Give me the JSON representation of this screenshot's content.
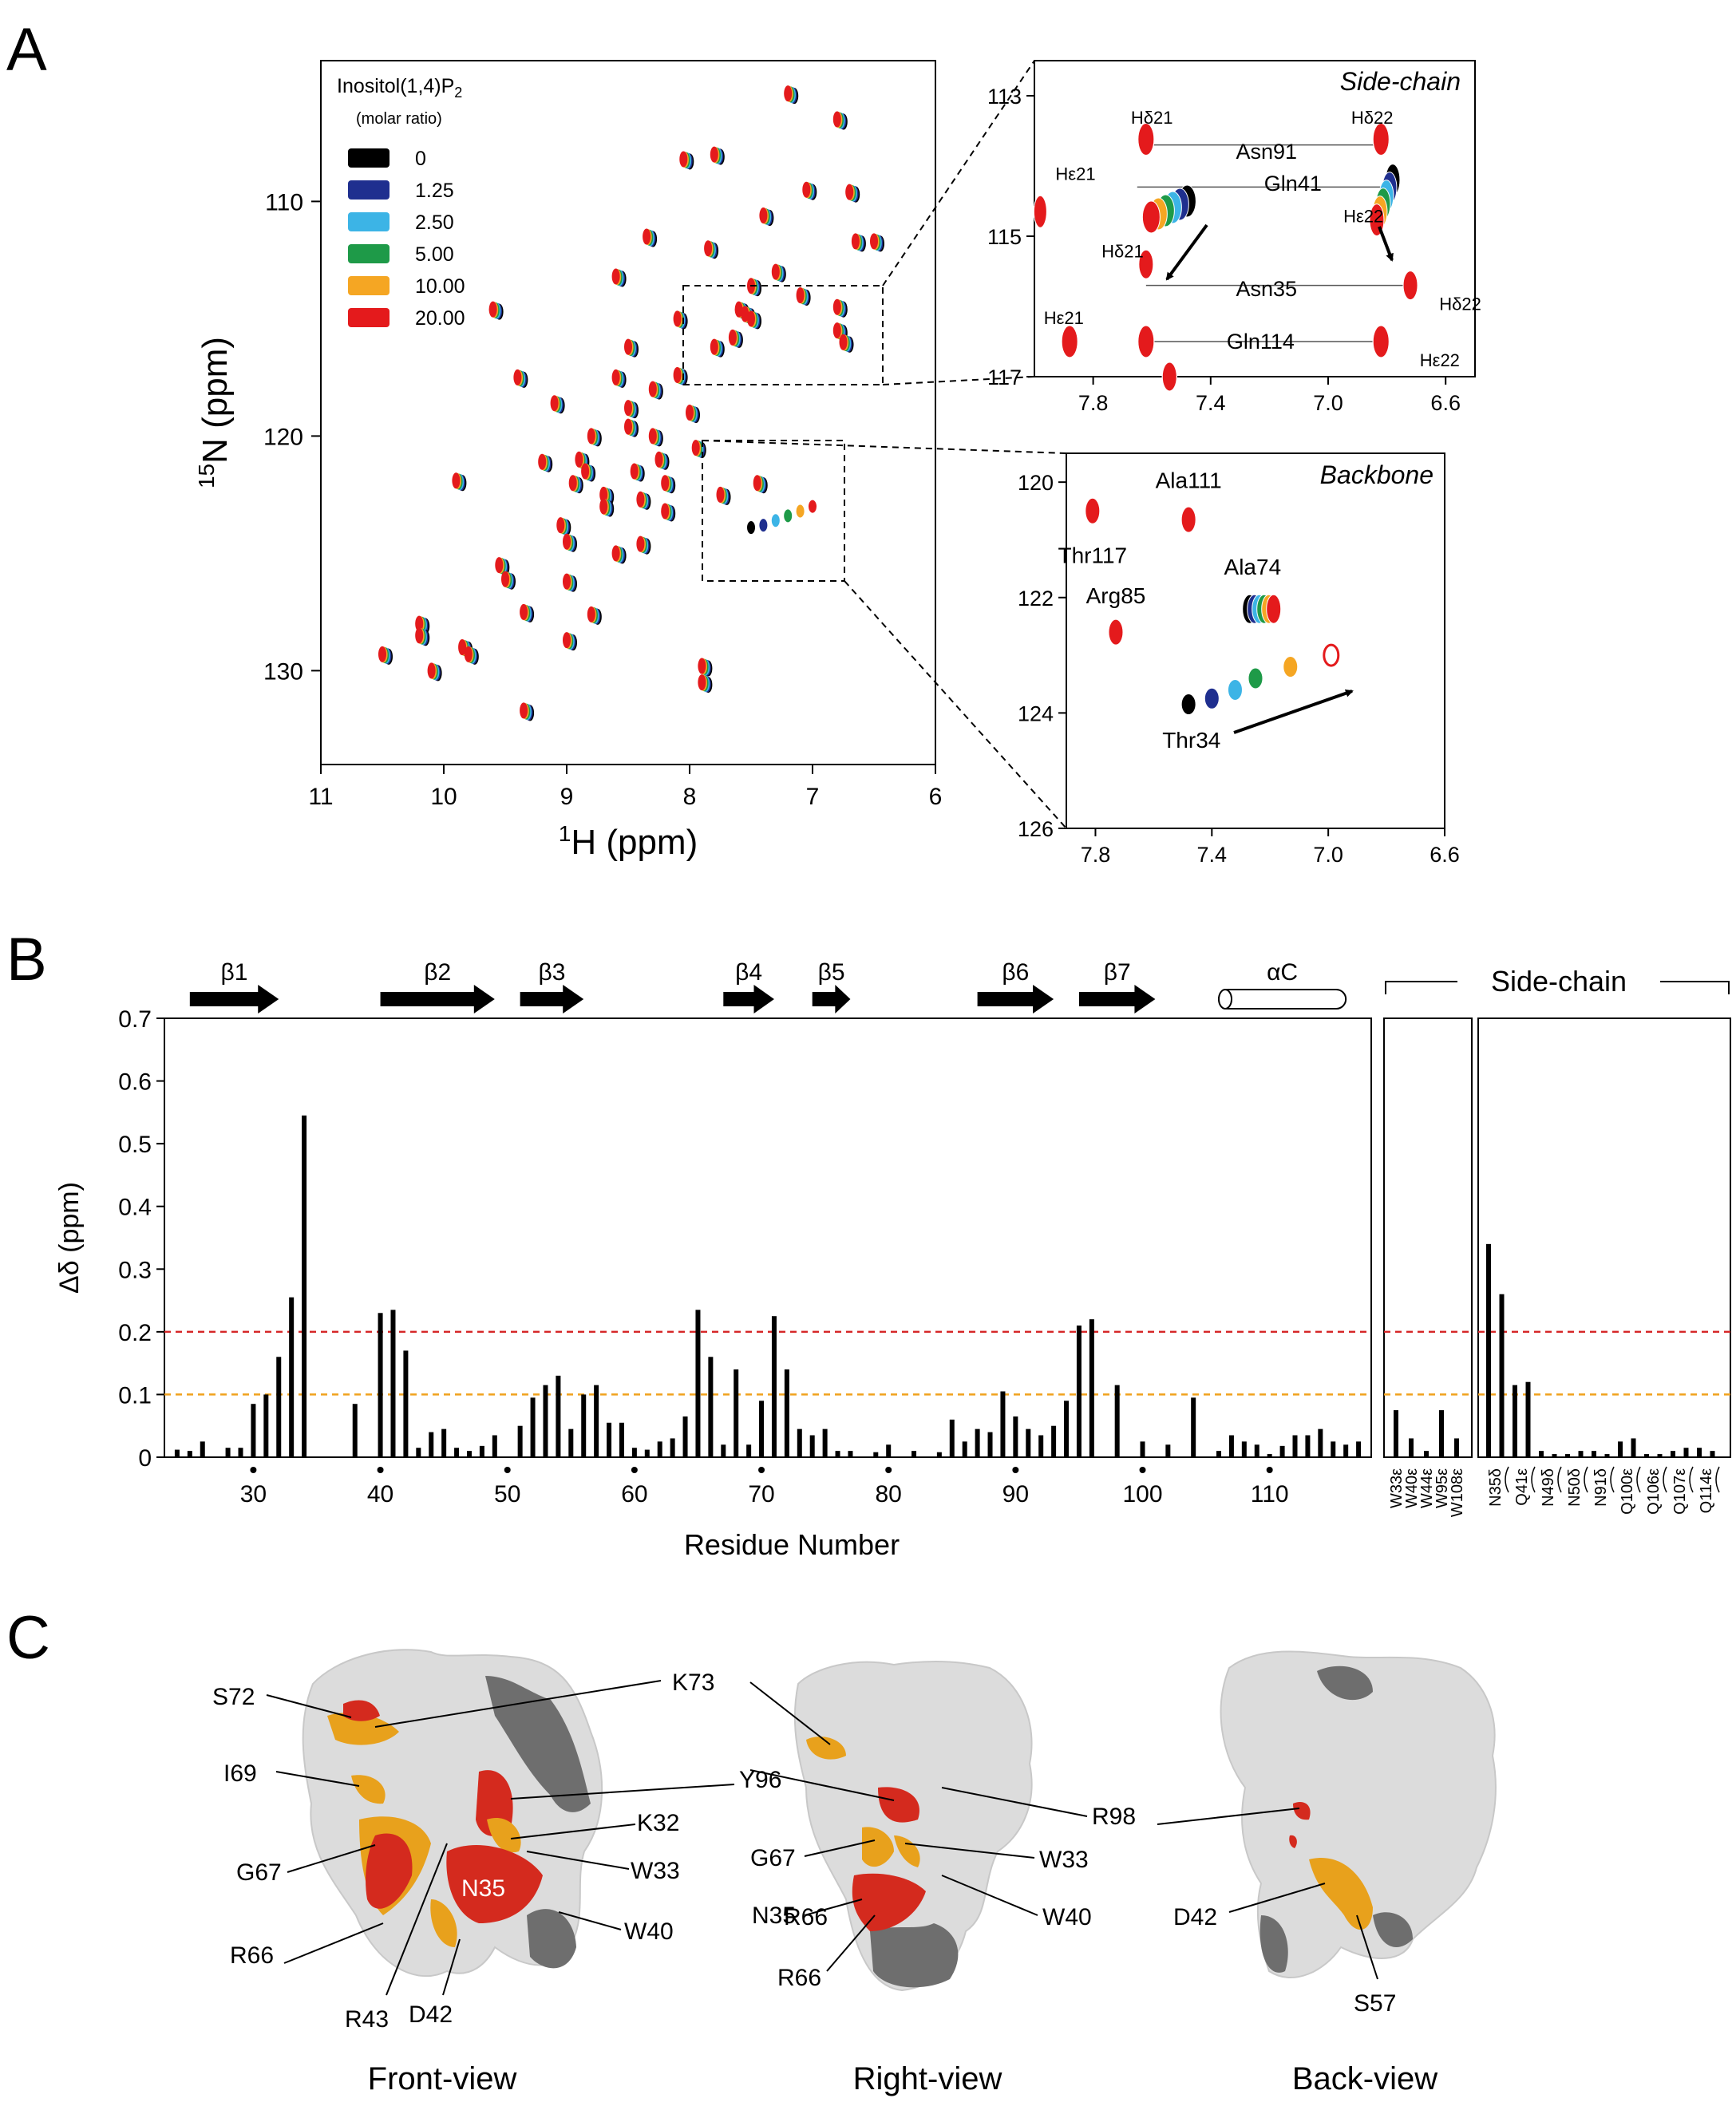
{
  "panel_labels": {
    "a": "A",
    "b": "B",
    "c": "C"
  },
  "chart_data": [
    {
      "id": "main_hsqc",
      "type": "scatter",
      "xlabel": "1H (ppm)",
      "ylabel": "15N (ppm)",
      "xlim": [
        11,
        6
      ],
      "ylim": [
        134,
        104
      ],
      "xticks": [
        "11",
        "10",
        "9",
        "8",
        "7",
        "6"
      ],
      "yticks": [
        "110",
        "120",
        "130"
      ],
      "legend": {
        "title": "Inositol(1,4)P2",
        "subtitle": "(molar ratio)",
        "placement": "top-left",
        "entries": [
          {
            "label": "0",
            "color": "#000000"
          },
          {
            "label": "1.25",
            "color": "#1f2f8f"
          },
          {
            "label": "2.50",
            "color": "#3cb4e6"
          },
          {
            "label": "5.00",
            "color": "#1e9a48"
          },
          {
            "label": "10.00",
            "color": "#f5a623"
          },
          {
            "label": "20.00",
            "color": "#e41a1c"
          }
        ]
      },
      "peaks": [
        [
          10.5,
          129.3
        ],
        [
          10.2,
          128.0
        ],
        [
          10.2,
          128.5
        ],
        [
          10.1,
          130.0
        ],
        [
          9.9,
          121.9
        ],
        [
          9.85,
          129.0
        ],
        [
          9.8,
          129.3
        ],
        [
          9.6,
          114.6
        ],
        [
          9.55,
          125.5
        ],
        [
          9.5,
          126.1
        ],
        [
          9.4,
          117.5
        ],
        [
          9.35,
          131.7
        ],
        [
          9.35,
          127.5
        ],
        [
          9.2,
          121.1
        ],
        [
          9.1,
          118.6
        ],
        [
          9.05,
          123.8
        ],
        [
          9.0,
          126.2
        ],
        [
          9.0,
          128.7
        ],
        [
          9.0,
          124.5
        ],
        [
          8.95,
          122.0
        ],
        [
          8.9,
          121.0
        ],
        [
          8.85,
          121.5
        ],
        [
          8.8,
          120.0
        ],
        [
          8.8,
          127.6
        ],
        [
          8.7,
          122.5
        ],
        [
          8.7,
          123.0
        ],
        [
          8.6,
          125.0
        ],
        [
          8.6,
          113.2
        ],
        [
          8.6,
          117.5
        ],
        [
          8.5,
          116.2
        ],
        [
          8.5,
          118.8
        ],
        [
          8.5,
          119.6
        ],
        [
          8.45,
          121.5
        ],
        [
          8.4,
          122.7
        ],
        [
          8.4,
          124.6
        ],
        [
          8.35,
          111.5
        ],
        [
          8.3,
          118.0
        ],
        [
          8.3,
          120.0
        ],
        [
          8.25,
          121.0
        ],
        [
          8.2,
          122.0
        ],
        [
          8.2,
          123.2
        ],
        [
          8.1,
          115.0
        ],
        [
          8.1,
          117.4
        ],
        [
          8.05,
          108.2
        ],
        [
          8.0,
          119.0
        ],
        [
          7.95,
          120.5
        ],
        [
          7.9,
          129.8
        ],
        [
          7.9,
          130.5
        ],
        [
          7.85,
          112.0
        ],
        [
          7.8,
          108.0
        ],
        [
          7.8,
          116.2
        ],
        [
          7.75,
          122.5
        ],
        [
          7.65,
          115.8
        ],
        [
          7.6,
          114.6
        ],
        [
          7.55,
          114.8
        ],
        [
          7.5,
          113.6
        ],
        [
          7.5,
          115.0
        ],
        [
          7.45,
          122.0
        ],
        [
          7.4,
          110.6
        ],
        [
          7.3,
          113.0
        ],
        [
          7.2,
          105.4
        ],
        [
          7.1,
          114.0
        ],
        [
          7.05,
          109.5
        ],
        [
          6.8,
          106.5
        ],
        [
          6.8,
          114.5
        ],
        [
          6.8,
          115.5
        ],
        [
          6.75,
          116.0
        ],
        [
          6.7,
          109.6
        ],
        [
          6.65,
          111.7
        ],
        [
          6.5,
          111.7
        ]
      ],
      "thr34_track": [
        [
          7.5,
          123.9
        ],
        [
          7.4,
          123.8
        ],
        [
          7.3,
          123.6
        ],
        [
          7.2,
          123.4
        ],
        [
          7.1,
          123.2
        ],
        [
          7.0,
          123.0
        ]
      ]
    },
    {
      "id": "side_chain_zoom",
      "type": "scatter",
      "title": "Side-chain",
      "xlim": [
        8.0,
        6.5
      ],
      "ylim": [
        117,
        112.5
      ],
      "xticks": [
        "7.8",
        "7.4",
        "7.0",
        "6.6"
      ],
      "yticks": [
        "113",
        "115",
        "117"
      ],
      "annotations": [
        {
          "text": "Hδ21",
          "x": 7.6,
          "y": 113.4
        },
        {
          "text": "Hδ22",
          "x": 6.85,
          "y": 113.4
        },
        {
          "text": "Asn91",
          "x": 7.21,
          "y": 113.9
        },
        {
          "text": "Hε21",
          "x": 7.86,
          "y": 114.2
        },
        {
          "text": "Gln41",
          "x": 7.12,
          "y": 114.35
        },
        {
          "text": "Hε22",
          "x": 6.88,
          "y": 114.8
        },
        {
          "text": "Hδ21",
          "x": 7.7,
          "y": 115.3
        },
        {
          "text": "Asn35",
          "x": 7.21,
          "y": 115.85
        },
        {
          "text": "Hδ22",
          "x": 6.55,
          "y": 116.05
        },
        {
          "text": "Hε21",
          "x": 7.9,
          "y": 116.25
        },
        {
          "text": "Gln114",
          "x": 7.23,
          "y": 116.6
        },
        {
          "text": "Hε22",
          "x": 6.62,
          "y": 116.85
        }
      ]
    },
    {
      "id": "backbone_zoom",
      "type": "scatter",
      "title": "Backbone",
      "xlim": [
        7.9,
        6.6
      ],
      "ylim": [
        126,
        119.5
      ],
      "xticks": [
        "7.8",
        "7.4",
        "7.0",
        "6.6"
      ],
      "yticks": [
        "120",
        "122",
        "124",
        "126"
      ],
      "annotations": [
        {
          "text": "Ala111",
          "x": 7.48,
          "y": 120.1
        },
        {
          "text": "Thr117",
          "x": 7.81,
          "y": 121.4
        },
        {
          "text": "Arg85",
          "x": 7.73,
          "y": 122.1
        },
        {
          "text": "Ala74",
          "x": 7.26,
          "y": 121.6
        },
        {
          "text": "Thr34",
          "x": 7.47,
          "y": 124.6
        }
      ]
    },
    {
      "id": "csp_bar",
      "type": "bar",
      "xlabel": "Residue Number",
      "ylabel": "Δδ (ppm)",
      "ylim": [
        0,
        0.7
      ],
      "xlim": [
        23,
        118
      ],
      "yticks": [
        "0",
        "0.1",
        "0.2",
        "0.3",
        "0.4",
        "0.5",
        "0.6",
        "0.7"
      ],
      "xticks": [
        "30",
        "40",
        "50",
        "60",
        "70",
        "80",
        "90",
        "100",
        "110"
      ],
      "thresholds": [
        {
          "value": 0.2,
          "color": "#d62728"
        },
        {
          "value": 0.1,
          "color": "#f0a21e"
        }
      ],
      "secondary_structure": [
        {
          "label": "β1",
          "start": 25,
          "end": 32,
          "kind": "strand"
        },
        {
          "label": "β2",
          "start": 40,
          "end": 49,
          "kind": "strand"
        },
        {
          "label": "β3",
          "start": 51,
          "end": 56,
          "kind": "strand"
        },
        {
          "label": "β4",
          "start": 67,
          "end": 71,
          "kind": "strand"
        },
        {
          "label": "β5",
          "start": 74,
          "end": 77,
          "kind": "strand"
        },
        {
          "label": "β6",
          "start": 87,
          "end": 93,
          "kind": "strand"
        },
        {
          "label": "β7",
          "start": 95,
          "end": 101,
          "kind": "strand"
        },
        {
          "label": "αC",
          "start": 106,
          "end": 116,
          "kind": "helix"
        }
      ],
      "residues": [
        24,
        25,
        26,
        28,
        29,
        30,
        31,
        32,
        33,
        34,
        38,
        40,
        41,
        42,
        43,
        44,
        45,
        46,
        47,
        48,
        49,
        51,
        52,
        53,
        54,
        55,
        56,
        57,
        58,
        59,
        60,
        61,
        62,
        63,
        64,
        65,
        66,
        67,
        68,
        69,
        70,
        71,
        72,
        73,
        74,
        75,
        76,
        77,
        79,
        80,
        82,
        84,
        85,
        86,
        87,
        88,
        89,
        90,
        91,
        92,
        93,
        94,
        95,
        96,
        98,
        100,
        102,
        104,
        106,
        107,
        108,
        109,
        110,
        111,
        112,
        113,
        114,
        115,
        116,
        117
      ],
      "values": [
        0.012,
        0.01,
        0.025,
        0.015,
        0.015,
        0.085,
        0.1,
        0.16,
        0.255,
        0.545,
        0.085,
        0.23,
        0.235,
        0.17,
        0.015,
        0.04,
        0.045,
        0.015,
        0.01,
        0.018,
        0.035,
        0.05,
        0.095,
        0.115,
        0.13,
        0.045,
        0.1,
        0.115,
        0.055,
        0.055,
        0.015,
        0.012,
        0.025,
        0.03,
        0.065,
        0.235,
        0.16,
        0.02,
        0.14,
        0.02,
        0.09,
        0.225,
        0.14,
        0.045,
        0.035,
        0.045,
        0.01,
        0.01,
        0.008,
        0.02,
        0.01,
        0.008,
        0.06,
        0.025,
        0.045,
        0.04,
        0.105,
        0.065,
        0.045,
        0.035,
        0.05,
        0.09,
        0.21,
        0.22,
        0.115,
        0.025,
        0.02,
        0.095,
        0.01,
        0.035,
        0.025,
        0.02,
        0.005,
        0.018,
        0.035,
        0.035,
        0.045,
        0.025,
        0.02,
        0.025
      ],
      "side_chain_header": "Side-chain",
      "side_chain_groups": [
        {
          "labels": [
            "W33ε",
            "W40ε",
            "W44ε",
            "W95ε",
            "W108ε"
          ],
          "values": [
            0.075,
            0.03,
            0.01,
            0.075,
            0.03
          ]
        },
        {
          "labels": [
            "N35δ",
            "Q41ε",
            "N49δ",
            "N50δ",
            "N91δ",
            "Q100ε",
            "Q106ε",
            "Q107ε",
            "Q114ε"
          ],
          "values": [
            0.34,
            0.26,
            0.115,
            0.12,
            0.01,
            0.005,
            0.005,
            0.01,
            0.01,
            0.005,
            0.025,
            0.03,
            0.005,
            0.005,
            0.01,
            0.015,
            0.015,
            0.01
          ]
        }
      ]
    }
  ],
  "structure_views": [
    {
      "caption": "Front-view",
      "labels": [
        "S72",
        "I69",
        "G67",
        "R66",
        "R43",
        "D42",
        "N35",
        "K73",
        "Y96",
        "K32",
        "W33",
        "W40"
      ]
    },
    {
      "caption": "Right-view",
      "labels": [
        "K73",
        "Y96",
        "G67",
        "N35",
        "R66",
        "R98",
        "W33",
        "W40"
      ]
    },
    {
      "caption": "Back-view",
      "labels": [
        "D42",
        "S57"
      ]
    }
  ],
  "colors": {
    "red": "#d42a1e",
    "orange": "#e8a11c",
    "light_gray": "#dcdcdc",
    "dark_gray": "#6e6e6e"
  }
}
